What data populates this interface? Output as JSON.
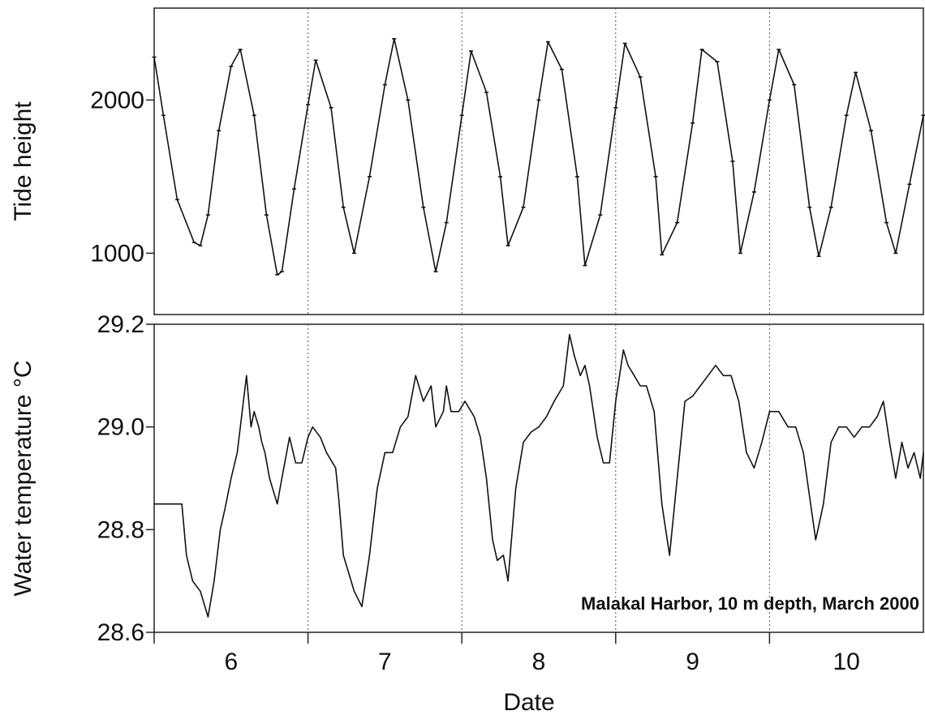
{
  "figure": {
    "annotation": "Malakal Harbor, 10 m depth, March 2000",
    "xlabel": "Date"
  },
  "chart_data": [
    {
      "type": "line",
      "ylabel": "Tide height",
      "xlabel": "Date",
      "xlim": [
        5.5,
        10.5
      ],
      "ylim": [
        600,
        2600
      ],
      "yticks": [
        1000,
        2000
      ],
      "xticks": [
        6,
        7,
        8,
        9,
        10
      ],
      "day_separators": [
        6.5,
        7.5,
        8.5,
        9.5
      ],
      "markers": "small tick marks on line",
      "series": [
        {
          "x": [
            5.5,
            5.56,
            5.65,
            5.76,
            5.8,
            5.85,
            5.92,
            6.0,
            6.06,
            6.15,
            6.23,
            6.3,
            6.33,
            6.41,
            6.5,
            6.55,
            6.65,
            6.73,
            6.8,
            6.9,
            7.0,
            7.06,
            7.15,
            7.25,
            7.33,
            7.4,
            7.5,
            7.56,
            7.66,
            7.75,
            7.8,
            7.9,
            8.0,
            8.06,
            8.15,
            8.25,
            8.3,
            8.4,
            8.5,
            8.56,
            8.66,
            8.76,
            8.8,
            8.9,
            9.0,
            9.06,
            9.16,
            9.26,
            9.31,
            9.4,
            9.5,
            9.56,
            9.66,
            9.76,
            9.82,
            9.9,
            10.0,
            10.06,
            10.16,
            10.26,
            10.32,
            10.41,
            10.5
          ],
          "y": [
            2280,
            1900,
            1350,
            1070,
            1050,
            1250,
            1800,
            2220,
            2330,
            1900,
            1250,
            860,
            880,
            1420,
            1970,
            2260,
            1950,
            1300,
            1000,
            1500,
            2100,
            2400,
            2000,
            1300,
            880,
            1200,
            1900,
            2320,
            2050,
            1500,
            1050,
            1300,
            2000,
            2380,
            2200,
            1500,
            920,
            1250,
            1950,
            2370,
            2150,
            1500,
            990,
            1200,
            1850,
            2330,
            2250,
            1600,
            1000,
            1400,
            2000,
            2330,
            2100,
            1300,
            980,
            1300,
            1900,
            2180,
            1800,
            1200,
            1000,
            1450,
            1900
          ]
        }
      ]
    },
    {
      "type": "line",
      "ylabel": "Water temperature °C",
      "xlabel": "Date",
      "xlim": [
        5.5,
        10.5
      ],
      "ylim": [
        28.6,
        29.2
      ],
      "yticks": [
        28.6,
        28.8,
        29.0,
        29.2
      ],
      "xticks": [
        6,
        7,
        8,
        9,
        10
      ],
      "day_separators": [
        6.5,
        7.5,
        8.5,
        9.5
      ],
      "series": [
        {
          "x": [
            5.5,
            5.68,
            5.71,
            5.75,
            5.8,
            5.85,
            5.89,
            5.93,
            5.96,
            6.0,
            6.04,
            6.1,
            6.13,
            6.15,
            6.18,
            6.2,
            6.22,
            6.25,
            6.3,
            6.33,
            6.38,
            6.42,
            6.46,
            6.5,
            6.53,
            6.58,
            6.62,
            6.68,
            6.7,
            6.73,
            6.76,
            6.8,
            6.85,
            6.9,
            6.95,
            7.0,
            7.05,
            7.1,
            7.15,
            7.2,
            7.25,
            7.3,
            7.33,
            7.38,
            7.4,
            7.43,
            7.48,
            7.52,
            7.58,
            7.62,
            7.66,
            7.7,
            7.73,
            7.77,
            7.8,
            7.85,
            7.9,
            7.95,
            8.0,
            8.05,
            8.1,
            8.16,
            8.2,
            8.23,
            8.27,
            8.3,
            8.33,
            8.38,
            8.42,
            8.46,
            8.5,
            8.55,
            8.58,
            8.62,
            8.66,
            8.7,
            8.75,
            8.8,
            8.85,
            8.9,
            8.95,
            9.0,
            9.05,
            9.1,
            9.15,
            9.2,
            9.25,
            9.3,
            9.35,
            9.4,
            9.45,
            9.5,
            9.56,
            9.62,
            9.67,
            9.72,
            9.8,
            9.85,
            9.9,
            9.95,
            10.0,
            10.05,
            10.1,
            10.15,
            10.2,
            10.24,
            10.28,
            10.32,
            10.36,
            10.4,
            10.44,
            10.48,
            10.5
          ],
          "y": [
            28.85,
            28.85,
            28.75,
            28.7,
            28.68,
            28.63,
            28.7,
            28.8,
            28.84,
            28.9,
            28.95,
            29.1,
            29.0,
            29.03,
            29.0,
            28.97,
            28.95,
            28.9,
            28.85,
            28.9,
            28.98,
            28.93,
            28.93,
            28.98,
            29.0,
            28.98,
            28.95,
            28.92,
            28.86,
            28.75,
            28.72,
            28.68,
            28.65,
            28.75,
            28.88,
            28.95,
            28.95,
            29.0,
            29.02,
            29.1,
            29.05,
            29.08,
            29.0,
            29.03,
            29.08,
            29.03,
            29.03,
            29.05,
            29.02,
            28.98,
            28.9,
            28.78,
            28.74,
            28.75,
            28.7,
            28.88,
            28.97,
            28.99,
            29.0,
            29.02,
            29.05,
            29.08,
            29.18,
            29.14,
            29.1,
            29.12,
            29.08,
            28.98,
            28.93,
            28.93,
            29.05,
            29.15,
            29.12,
            29.1,
            29.08,
            29.08,
            29.03,
            28.85,
            28.75,
            28.9,
            29.05,
            29.06,
            29.08,
            29.1,
            29.12,
            29.1,
            29.1,
            29.05,
            28.95,
            28.92,
            28.97,
            29.03,
            29.03,
            29.0,
            29.0,
            28.95,
            28.78,
            28.85,
            28.97,
            29.0,
            29.0,
            28.98,
            29.0,
            29.0,
            29.02,
            29.05,
            28.97,
            28.9,
            28.97,
            28.92,
            28.95,
            28.9,
            28.95
          ]
        }
      ]
    }
  ]
}
